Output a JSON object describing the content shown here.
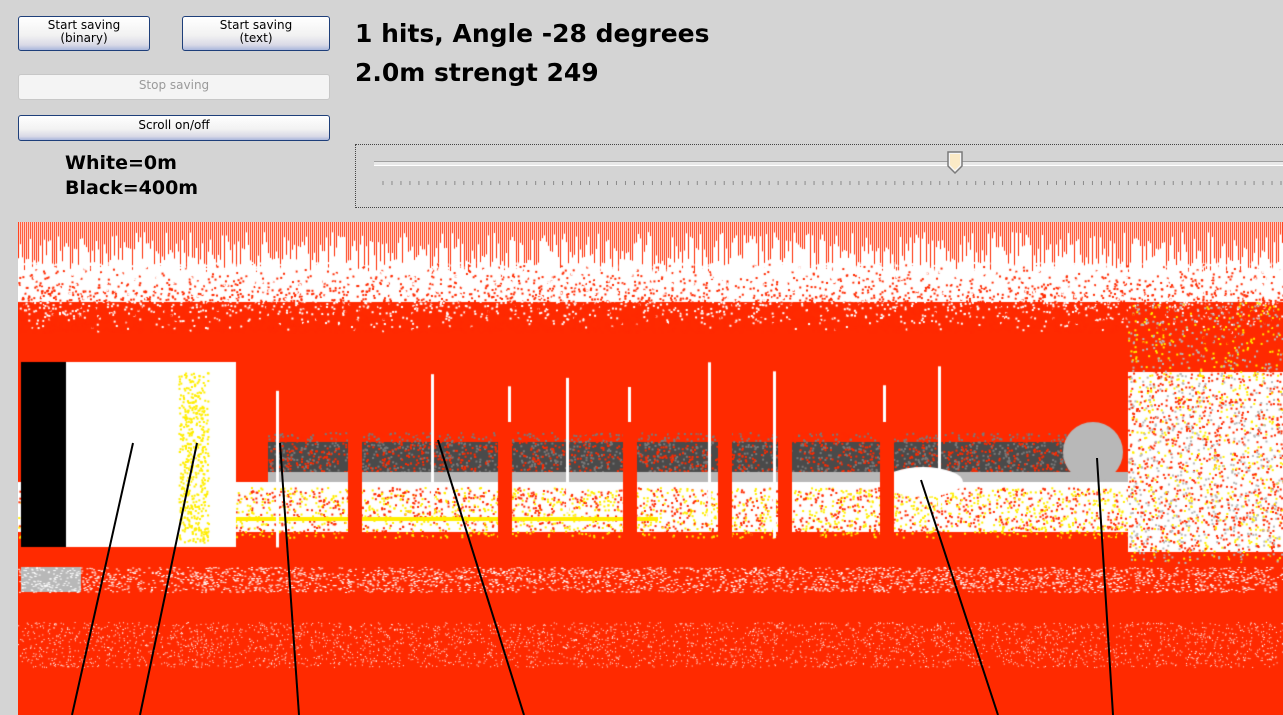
{
  "buttons": {
    "save_binary": [
      "Start saving",
      "(binary)"
    ],
    "save_text": [
      "Start saving",
      "(text)"
    ],
    "stop_saving": "Stop saving",
    "scroll": "Scroll on/off"
  },
  "status": {
    "line1": "1 hits, Angle -28 degrees",
    "line2": "2.0m strengt 249"
  },
  "legend": {
    "white": "White=0m",
    "black": "Black=400m"
  },
  "slider": {
    "value_fraction": 0.645,
    "tick_count": 101
  },
  "colors": {
    "window_bg": "#d4d4d4",
    "sonar_red": "#ff2a00",
    "sonar_white": "#ffffff",
    "sonar_yellow": "#ffee00",
    "sonar_grey": "#b8b8b8",
    "sonar_dark": "#4a4a4a",
    "button_border": "#1e3f7a"
  }
}
